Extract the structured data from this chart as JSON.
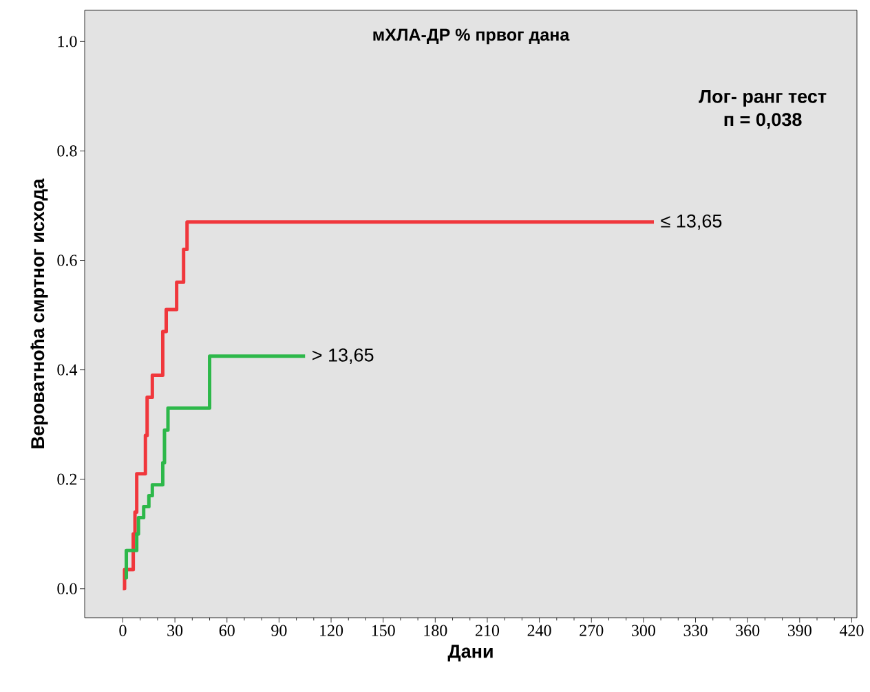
{
  "chart_data": {
    "type": "step",
    "title": "мХЛА-ДР % првог дана",
    "xlabel": "Дани",
    "ylabel": "Вероватноћа смртног исхода",
    "annotations": [
      "Лог- ранг тест",
      "п = 0,038"
    ],
    "series": [
      {
        "name": "≤ 13,65",
        "color": "#f0373c",
        "x": [
          0,
          1,
          6,
          7,
          8,
          13,
          14,
          17,
          23,
          25,
          31,
          35,
          37,
          306
        ],
        "values": [
          0,
          0.035,
          0.1,
          0.14,
          0.21,
          0.28,
          0.35,
          0.39,
          0.47,
          0.51,
          0.56,
          0.62,
          0.67,
          0.67
        ]
      },
      {
        "name": "> 13,65",
        "color": "#2db84a",
        "x": [
          1,
          2,
          8,
          9,
          12,
          15,
          17,
          23,
          24,
          26,
          50,
          105
        ],
        "values": [
          0.02,
          0.07,
          0.1,
          0.13,
          0.15,
          0.17,
          0.19,
          0.23,
          0.29,
          0.33,
          0.425,
          0.425
        ]
      }
    ],
    "xlim": [
      -22,
      423
    ],
    "ylim": [
      -0.053,
      1.057
    ],
    "xticks": [
      0,
      30,
      60,
      90,
      120,
      150,
      180,
      210,
      240,
      270,
      300,
      330,
      360,
      390,
      420
    ],
    "yticks": [
      {
        "value": 0,
        "label": "0.0"
      },
      {
        "value": 0.2,
        "label": "0.2"
      },
      {
        "value": 0.4,
        "label": "0.4"
      },
      {
        "value": 0.6,
        "label": "0.6"
      },
      {
        "value": 0.8,
        "label": "0.8"
      },
      {
        "value": 1,
        "label": "1.0"
      }
    ]
  }
}
